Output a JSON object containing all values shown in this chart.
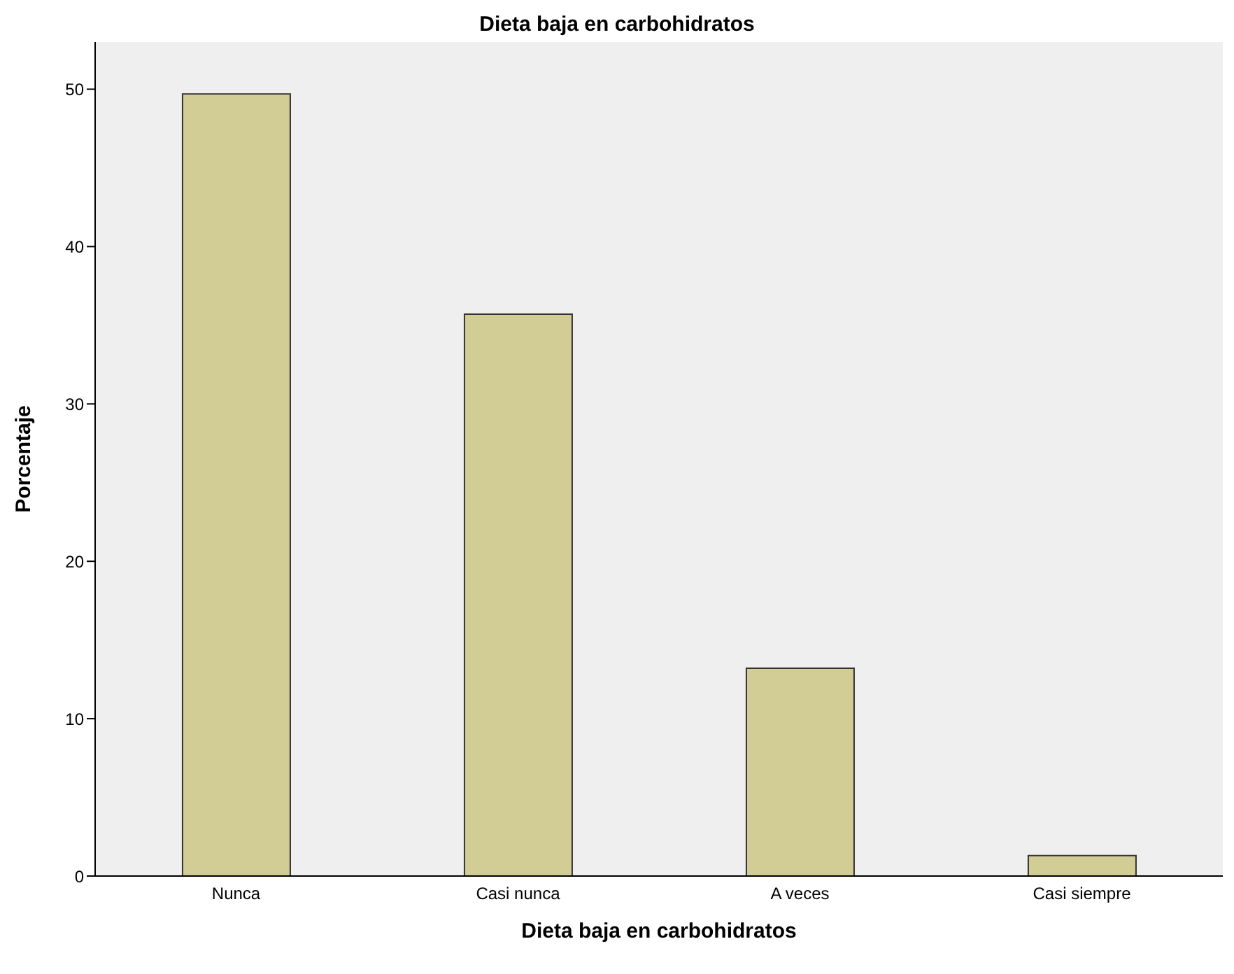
{
  "chart_data": {
    "type": "bar",
    "title": "Dieta baja en carbohidratos",
    "xlabel": "Dieta baja en carbohidratos",
    "ylabel": "Porcentaje",
    "categories": [
      "Nunca",
      "Casi nunca",
      "A veces",
      "Casi siempre"
    ],
    "values": [
      49.7,
      35.7,
      13.2,
      1.3
    ],
    "color": "#d2cc95",
    "ylim": [
      0,
      53
    ],
    "yticks": [
      0,
      10,
      20,
      30,
      40,
      50
    ],
    "grid": false
  }
}
